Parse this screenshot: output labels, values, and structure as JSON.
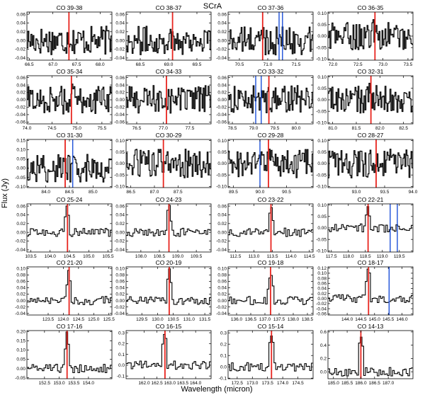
{
  "title": "SCrA",
  "xlabel": "Wavelength (micron)",
  "ylabel": "Flux (Jy)",
  "colors": {
    "spectrum": "#000000",
    "co_line": "#e8251f",
    "other_line": "#1b4fd8"
  },
  "chart_data": [
    {
      "type": "line",
      "title": "CO 39-38",
      "xlim": [
        66.45,
        68.25
      ],
      "xticks": [
        "66.5",
        "67.0",
        "67.5",
        "68.0"
      ],
      "ylim": [
        -0.045,
        0.065
      ],
      "yticks": [
        "0.06",
        "0.04",
        "0.02",
        "0.00",
        "-0.02",
        "-0.04"
      ],
      "co_line": 67.34,
      "other_lines": []
    },
    {
      "type": "line",
      "title": "CO 38-37",
      "xlim": [
        68.25,
        69.75
      ],
      "xticks": [
        "68.5",
        "69.0",
        "69.5"
      ],
      "ylim": [
        -0.045,
        0.065
      ],
      "yticks": [
        "0.06",
        "0.04",
        "0.02",
        "0.00",
        "-0.02",
        "-0.04"
      ],
      "co_line": 69.07,
      "other_lines": []
    },
    {
      "type": "line",
      "title": "CO 37-36",
      "xlim": [
        70.3,
        71.8
      ],
      "xticks": [
        "70.5",
        "71.0",
        "71.5"
      ],
      "ylim": [
        -0.045,
        0.065
      ],
      "yticks": [
        "0.06",
        "0.04",
        "0.02",
        "0.00",
        "-0.02",
        "-0.04"
      ],
      "co_line": 70.91,
      "other_lines": [
        71.2,
        71.26
      ]
    },
    {
      "type": "line",
      "title": "CO 36-35",
      "xlim": [
        71.9,
        73.6
      ],
      "xticks": [
        "72.0",
        "72.5",
        "73.0",
        "73.5"
      ],
      "ylim": [
        -0.105,
        0.105
      ],
      "yticks": [
        "0.10",
        "0.05",
        "0.00",
        "-0.05",
        "-0.10"
      ],
      "co_line": 72.84,
      "other_lines": []
    },
    {
      "type": "line",
      "title": "CO 35-34",
      "xlim": [
        74.0,
        75.7
      ],
      "xticks": [
        "74.0",
        "74.5",
        "75.0",
        "75.5"
      ],
      "ylim": [
        -0.065,
        0.065
      ],
      "yticks": [
        "0.06",
        "0.04",
        "0.02",
        "0.00",
        "-0.02",
        "-0.04",
        "-0.06"
      ],
      "co_line": 74.89,
      "other_lines": []
    },
    {
      "type": "line",
      "title": "CO 34-33",
      "xlim": [
        76.3,
        77.9
      ],
      "xticks": [
        "76.5",
        "77.0",
        "77.5"
      ],
      "ylim": [
        -0.065,
        0.065
      ],
      "yticks": [
        "0.06",
        "0.04",
        "0.02",
        "0.00",
        "-0.02",
        "-0.04",
        "-0.06"
      ],
      "co_line": 77.06,
      "other_lines": []
    },
    {
      "type": "line",
      "title": "CO 33-32",
      "xlim": [
        78.4,
        80.4
      ],
      "xticks": [
        "78.5",
        "79.0",
        "79.5",
        "80.0"
      ],
      "ylim": [
        -0.065,
        0.065
      ],
      "yticks": [
        "0.06",
        "0.04",
        "0.02",
        "0.00",
        "-0.02",
        "-0.04",
        "-0.06"
      ],
      "co_line": 79.36,
      "other_lines": [
        79.05,
        79.18
      ]
    },
    {
      "type": "line",
      "title": "CO 32-31",
      "xlim": [
        80.9,
        82.7
      ],
      "xticks": [
        "81.0",
        "81.5",
        "82.0",
        "82.5"
      ],
      "ylim": [
        -0.105,
        0.105
      ],
      "yticks": [
        "0.10",
        "0.05",
        "0.00",
        "-0.05",
        "-0.10"
      ],
      "co_line": 81.81,
      "other_lines": []
    },
    {
      "type": "line",
      "title": "CO 31-30",
      "xlim": [
        83.6,
        85.4
      ],
      "xticks": [
        "84.0",
        "84.5",
        "85.0"
      ],
      "ylim": [
        -0.105,
        0.155
      ],
      "yticks": [
        "0.15",
        "0.10",
        "0.05",
        "0.00",
        "-0.05",
        "-0.10"
      ],
      "co_line": 84.41,
      "other_lines": [
        84.57
      ]
    },
    {
      "type": "line",
      "title": "CO 30-29",
      "xlim": [
        86.4,
        88.2
      ],
      "xticks": [
        "86.5",
        "87.0",
        "87.5"
      ],
      "ylim": [
        -0.105,
        0.105
      ],
      "yticks": [
        "0.10",
        "0.05",
        "0.00",
        "-0.05",
        "-0.10"
      ],
      "co_line": 87.19,
      "other_lines": []
    },
    {
      "type": "line",
      "title": "CO 29-28",
      "xlim": [
        89.4,
        91.0
      ],
      "xticks": [
        "89.5",
        "90.0",
        "90.5"
      ],
      "ylim": [
        -0.105,
        0.105
      ],
      "yticks": [
        "0.10",
        "0.05",
        "0.00",
        "-0.05",
        "-0.10"
      ],
      "co_line": 90.16,
      "other_lines": [
        90.0
      ]
    },
    {
      "type": "line",
      "title": "CO 28-27",
      "xlim": [
        92.5,
        94.0
      ],
      "xticks": [
        "93.0",
        "93.5",
        "94.0"
      ],
      "ylim": [
        -0.105,
        0.105
      ],
      "yticks": [
        "0.10",
        "0.05",
        "0.00",
        "-0.05",
        "-0.10"
      ],
      "co_line": 93.35,
      "other_lines": []
    },
    {
      "type": "line",
      "title": "CO 25-24",
      "xlim": [
        103.4,
        105.6
      ],
      "xticks": [
        "103.5",
        "104.0",
        "104.5",
        "105.0",
        "105.5"
      ],
      "ylim": [
        -0.045,
        0.065
      ],
      "yticks": [
        "0.06",
        "0.04",
        "0.02",
        "0.00",
        "-0.02",
        "-0.04"
      ],
      "co_line": 104.45,
      "other_lines": []
    },
    {
      "type": "line",
      "title": "CO 24-23",
      "xlim": [
        107.6,
        109.9
      ],
      "xticks": [
        "108.0",
        "108.5",
        "109.0",
        "109.5"
      ],
      "ylim": [
        -0.045,
        0.065
      ],
      "yticks": [
        "0.06",
        "0.04",
        "0.02",
        "0.00",
        "-0.02",
        "-0.04"
      ],
      "co_line": 108.76,
      "other_lines": []
    },
    {
      "type": "line",
      "title": "CO 23-22",
      "xlim": [
        112.3,
        114.6
      ],
      "xticks": [
        "112.5",
        "113.0",
        "113.5",
        "114.0",
        "114.5"
      ],
      "ylim": [
        -0.045,
        0.065
      ],
      "yticks": [
        "0.06",
        "0.04",
        "0.02",
        "0.00",
        "-0.02",
        "-0.04"
      ],
      "co_line": 113.46,
      "other_lines": []
    },
    {
      "type": "line",
      "title": "CO 22-21",
      "xlim": [
        117.4,
        119.9
      ],
      "xticks": [
        "117.5",
        "118.0",
        "118.5",
        "119.0",
        "119.5"
      ],
      "ylim": [
        -0.105,
        0.105
      ],
      "yticks": [
        "0.10",
        "0.05",
        "0.00",
        "-0.05",
        "-0.10"
      ],
      "co_line": 118.58,
      "other_lines": [
        119.23,
        119.44
      ]
    },
    {
      "type": "line",
      "title": "CO 21-20",
      "xlim": [
        122.8,
        125.6
      ],
      "xticks": [
        "123.5",
        "124.0",
        "124.5",
        "125.0",
        "125.5"
      ],
      "ylim": [
        -0.045,
        0.105
      ],
      "yticks": [
        "0.10",
        "0.08",
        "0.06",
        "0.04",
        "0.02",
        "0.00",
        "-0.02",
        "-0.04"
      ],
      "co_line": 124.19,
      "other_lines": []
    },
    {
      "type": "line",
      "title": "CO 20-19",
      "xlim": [
        129.0,
        131.7
      ],
      "xticks": [
        "129.5",
        "130.0",
        "130.5",
        "131.0",
        "131.5"
      ],
      "ylim": [
        -0.045,
        0.105
      ],
      "yticks": [
        "0.10",
        "0.08",
        "0.06",
        "0.04",
        "0.02",
        "0.00",
        "-0.02",
        "-0.04"
      ],
      "co_line": 130.37,
      "other_lines": []
    },
    {
      "type": "line",
      "title": "CO 19-18",
      "xlim": [
        135.7,
        138.7
      ],
      "xticks": [
        "136.0",
        "136.5",
        "137.0",
        "137.5",
        "138.0",
        "138.5"
      ],
      "ylim": [
        -0.045,
        0.105
      ],
      "yticks": [
        "0.10",
        "0.08",
        "0.06",
        "0.04",
        "0.02",
        "0.00",
        "-0.02",
        "-0.04"
      ],
      "co_line": 137.2,
      "other_lines": []
    },
    {
      "type": "line",
      "title": "CO 18-17",
      "xlim": [
        143.3,
        146.4
      ],
      "xticks": [
        "144.0",
        "144.5",
        "145.0",
        "145.5",
        "146.0"
      ],
      "ylim": [
        -0.065,
        0.125
      ],
      "yticks": [
        "0.12",
        "0.10",
        "0.08",
        "0.06",
        "0.04",
        "0.02",
        "0.00",
        "-0.02",
        "-0.04",
        "-0.06"
      ],
      "co_line": 144.78,
      "other_lines": [
        145.53
      ]
    },
    {
      "type": "line",
      "title": "CO 17-16",
      "xlim": [
        151.9,
        154.8
      ],
      "xticks": [
        "152.5",
        "153.0",
        "153.5",
        "154.0"
      ],
      "ylim": [
        -0.055,
        0.205
      ],
      "yticks": [
        "0.20",
        "0.15",
        "0.10",
        "0.05",
        "0.00",
        "-0.05"
      ],
      "co_line": 153.27,
      "other_lines": []
    },
    {
      "type": "line",
      "title": "CO 16-15",
      "xlim": [
        161.3,
        164.6
      ],
      "xticks": [
        "162.0",
        "162.5",
        "163.0",
        "163.5",
        "164.0"
      ],
      "ylim": [
        -0.125,
        0.32
      ],
      "yticks": [
        "0.3",
        "0.2",
        "0.1",
        "0.0",
        "-0.1"
      ],
      "co_line": 162.81,
      "other_lines": []
    },
    {
      "type": "line",
      "title": "CO 15-14",
      "xlim": [
        172.2,
        175.0
      ],
      "xticks": [
        "172.5",
        "173.0",
        "173.5",
        "174.0",
        "174.5"
      ],
      "ylim": [
        -0.105,
        0.32
      ],
      "yticks": [
        "0.3",
        "0.2",
        "0.1",
        "0.0",
        "-0.1"
      ],
      "co_line": 173.63,
      "other_lines": []
    },
    {
      "type": "line",
      "title": "CO 14-13",
      "xlim": [
        184.8,
        187.9
      ],
      "xticks": [
        "185.0",
        "185.5",
        "186.0",
        "186.5",
        "187.0"
      ],
      "ylim": [
        -0.105,
        0.62
      ],
      "yticks": [
        "0.6",
        "0.4",
        "0.2",
        "0.0"
      ],
      "co_line": 186.0,
      "other_lines": []
    }
  ]
}
